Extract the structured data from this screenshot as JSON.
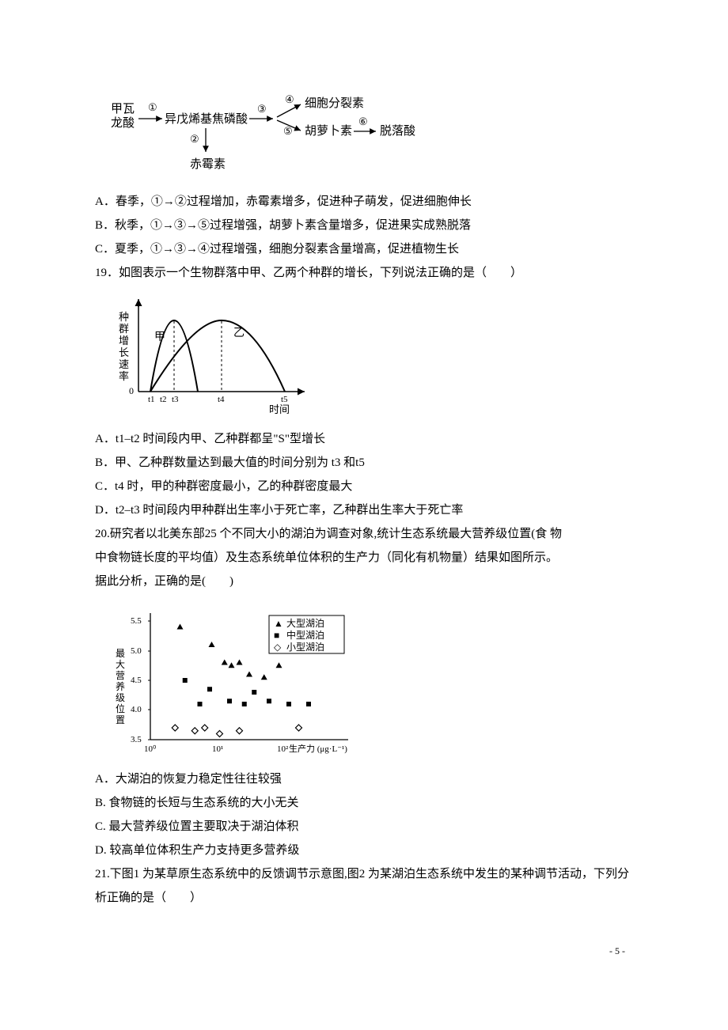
{
  "figure1": {
    "left_top": "甲瓦",
    "left_bottom": "龙酸",
    "node1_label": "①",
    "mid1": "异戊烯基焦磷酸",
    "node2_label": "②",
    "bottom_mid": "赤霉素",
    "node3_label": "③",
    "node4_label": "④",
    "top_right": "细胞分裂素",
    "node5_label": "⑤",
    "mid_right": "胡萝卜素",
    "node6_label": "⑥",
    "far_right": "脱落酸"
  },
  "option_a": "A．春季，①→②过程增加，赤霉素增多，促进种子萌发，促进细胞伸长",
  "option_b": "B．秋季，①→③→⑤过程增强，胡萝卜素含量增多，促进果实成熟脱落",
  "option_c": "C．夏季，①→③→④过程增强，细胞分裂素含量增高，促进植物生长",
  "q19_stem": "19．如图表示一个生物群落中甲、乙两个种群的增长，下列说法正确的是（　　）",
  "fig2": {
    "y_label": "种群增长速率",
    "curve_a": "甲",
    "curve_b": "乙",
    "x_ticks": [
      "t1",
      "t2",
      "t3",
      "t4",
      "t5"
    ],
    "x_label": "时间",
    "zero": "0"
  },
  "q19_a": "A．t1–t2 时间段内甲、乙种群都呈\"S\"型增长",
  "q19_b": "B．甲、乙种群数量达到最大值的时间分别为 t3 和t5",
  "q19_c": "C．t4 时，甲的种群密度最小，乙的种群密度最大",
  "q19_d": "D．t2–t3 时间段内甲种群出生率小于死亡率，乙种群出生率大于死亡率",
  "q20_stem1": "20.研究者以北美东部25 个不同大小的湖泊为调查对象,统计生态系统最大营养级位置(食 物",
  "q20_stem2": "中食物链长度的平均值）及生态系统单位体积的生产力（同化有机物量）结果如图所示。",
  "q20_stem3": "据此分析，正确的是(　　)",
  "fig3": {
    "y_label": "最大营养级位置",
    "y_ticks": [
      "3.5",
      "4.0",
      "4.5",
      "5.0",
      "5.5"
    ],
    "x_ticks": [
      "10⁰",
      "10¹",
      "10²"
    ],
    "x_label": "生产力 (μg·L⁻¹)",
    "legend": [
      {
        "marker": "▲",
        "label": "大型湖泊",
        "color": "#000000"
      },
      {
        "marker": "■",
        "label": "中型湖泊",
        "color": "#000000"
      },
      {
        "marker": "◇",
        "label": "小型湖泊",
        "color": "#000000"
      }
    ],
    "triangle_points": [
      [
        30,
        5.4
      ],
      [
        62,
        5.1
      ],
      [
        75,
        4.8
      ],
      [
        82,
        4.75
      ],
      [
        90,
        4.8
      ],
      [
        100,
        4.6
      ],
      [
        115,
        4.55
      ],
      [
        130,
        4.75
      ]
    ],
    "square_points": [
      [
        35,
        4.5
      ],
      [
        50,
        4.1
      ],
      [
        60,
        4.35
      ],
      [
        80,
        4.15
      ],
      [
        95,
        4.1
      ],
      [
        105,
        4.3
      ],
      [
        120,
        4.15
      ],
      [
        140,
        4.1
      ],
      [
        160,
        4.1
      ]
    ],
    "diamond_points": [
      [
        25,
        3.7
      ],
      [
        45,
        3.65
      ],
      [
        55,
        3.7
      ],
      [
        70,
        3.6
      ],
      [
        90,
        3.65
      ],
      [
        150,
        3.7
      ]
    ],
    "axis_color": "#000000",
    "bg": "#ffffff"
  },
  "q20_a": "A．大湖泊的恢复力稳定性往往较强",
  "q20_b": "B. 食物链的长短与生态系统的大小无关",
  "q20_c": "C. 最大营养级位置主要取决于湖泊体积",
  "q20_d": "D. 较高单位体积生产力支持更多营养级",
  "q21_stem": "21.下图1 为某草原生态系统中的反馈调节示意图,图2 为某湖泊生态系统中发生的某种调节活动，下列分析正确的是（　　）",
  "page_num": "- 5 -"
}
